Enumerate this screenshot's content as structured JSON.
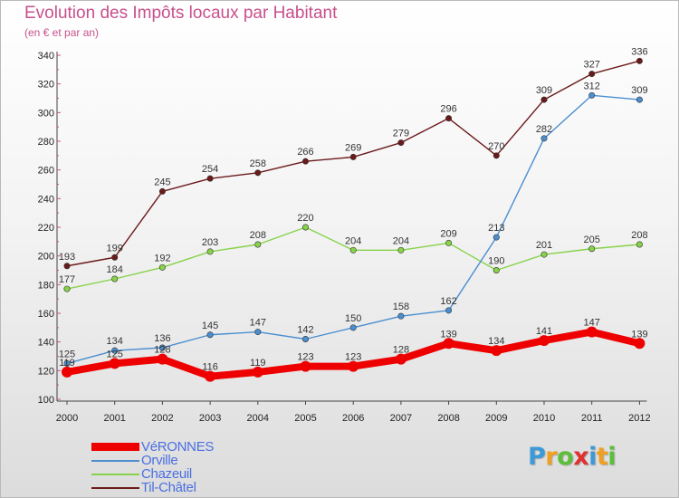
{
  "chart_data": {
    "type": "line",
    "title": "Evolution des Impôts locaux par Habitant",
    "subtitle": "(en € et par an)",
    "x": [
      "2000",
      "2001",
      "2002",
      "2003",
      "2004",
      "2005",
      "2006",
      "2007",
      "2008",
      "2009",
      "2010",
      "2011",
      "2012"
    ],
    "ylim": [
      100,
      340
    ],
    "yticks": [
      100,
      120,
      140,
      160,
      180,
      200,
      220,
      240,
      260,
      280,
      300,
      320,
      340
    ],
    "grid": false,
    "legend_position": "bottom-left",
    "series": [
      {
        "name": "VéRONNES",
        "color": "#ee0000",
        "values": [
          119,
          125,
          128,
          116,
          119,
          123,
          123,
          128,
          139,
          134,
          141,
          147,
          139
        ],
        "labels": [
          "",
          "",
          "",
          "116",
          "119",
          "123",
          "123",
          "128",
          "139",
          "134",
          "141",
          "147",
          "139"
        ]
      },
      {
        "name": "Orville",
        "color": "#4b8ed0",
        "values": [
          125,
          134,
          136,
          145,
          147,
          142,
          150,
          158,
          162,
          213,
          282,
          312,
          309
        ],
        "labels": [
          "125",
          "134",
          "136",
          "145",
          "147",
          "142",
          "150",
          "158",
          "162",
          "213",
          "282",
          "312",
          "309"
        ]
      },
      {
        "name": "Chazeuil",
        "color": "#88d24a",
        "values": [
          177,
          184,
          192,
          203,
          208,
          220,
          204,
          204,
          209,
          190,
          201,
          205,
          208
        ],
        "labels": [
          "177",
          "184",
          "192",
          "203",
          "208",
          "220",
          "204",
          "204",
          "209",
          "190",
          "201",
          "205",
          "208"
        ]
      },
      {
        "name": "Til-Châtel",
        "color": "#6b1a1a",
        "values": [
          193,
          199,
          245,
          254,
          258,
          266,
          269,
          279,
          296,
          270,
          309,
          327,
          336
        ],
        "labels": [
          "193",
          "199",
          "245",
          "254",
          "258",
          "266",
          "269",
          "279",
          "296",
          "270",
          "309",
          "327",
          "336"
        ]
      }
    ],
    "extra_labels": [
      {
        "text": "119",
        "x": "2000",
        "y": 119
      },
      {
        "text": "125",
        "x": "2001",
        "y": 125
      },
      {
        "text": "128",
        "x": "2002",
        "y": 128
      }
    ]
  },
  "legend": {
    "items": [
      "VéRONNES",
      "Orville",
      "Chazeuil",
      "Til-Châtel"
    ]
  },
  "brand": {
    "letters": [
      "P",
      "r",
      "o",
      "x",
      "i",
      "t",
      "i"
    ],
    "colors": [
      "#3c9ad8",
      "#f0a020",
      "#5cbf3a",
      "#e03030",
      "#3c9ad8",
      "#f0a020",
      "#5cbf3a"
    ]
  }
}
